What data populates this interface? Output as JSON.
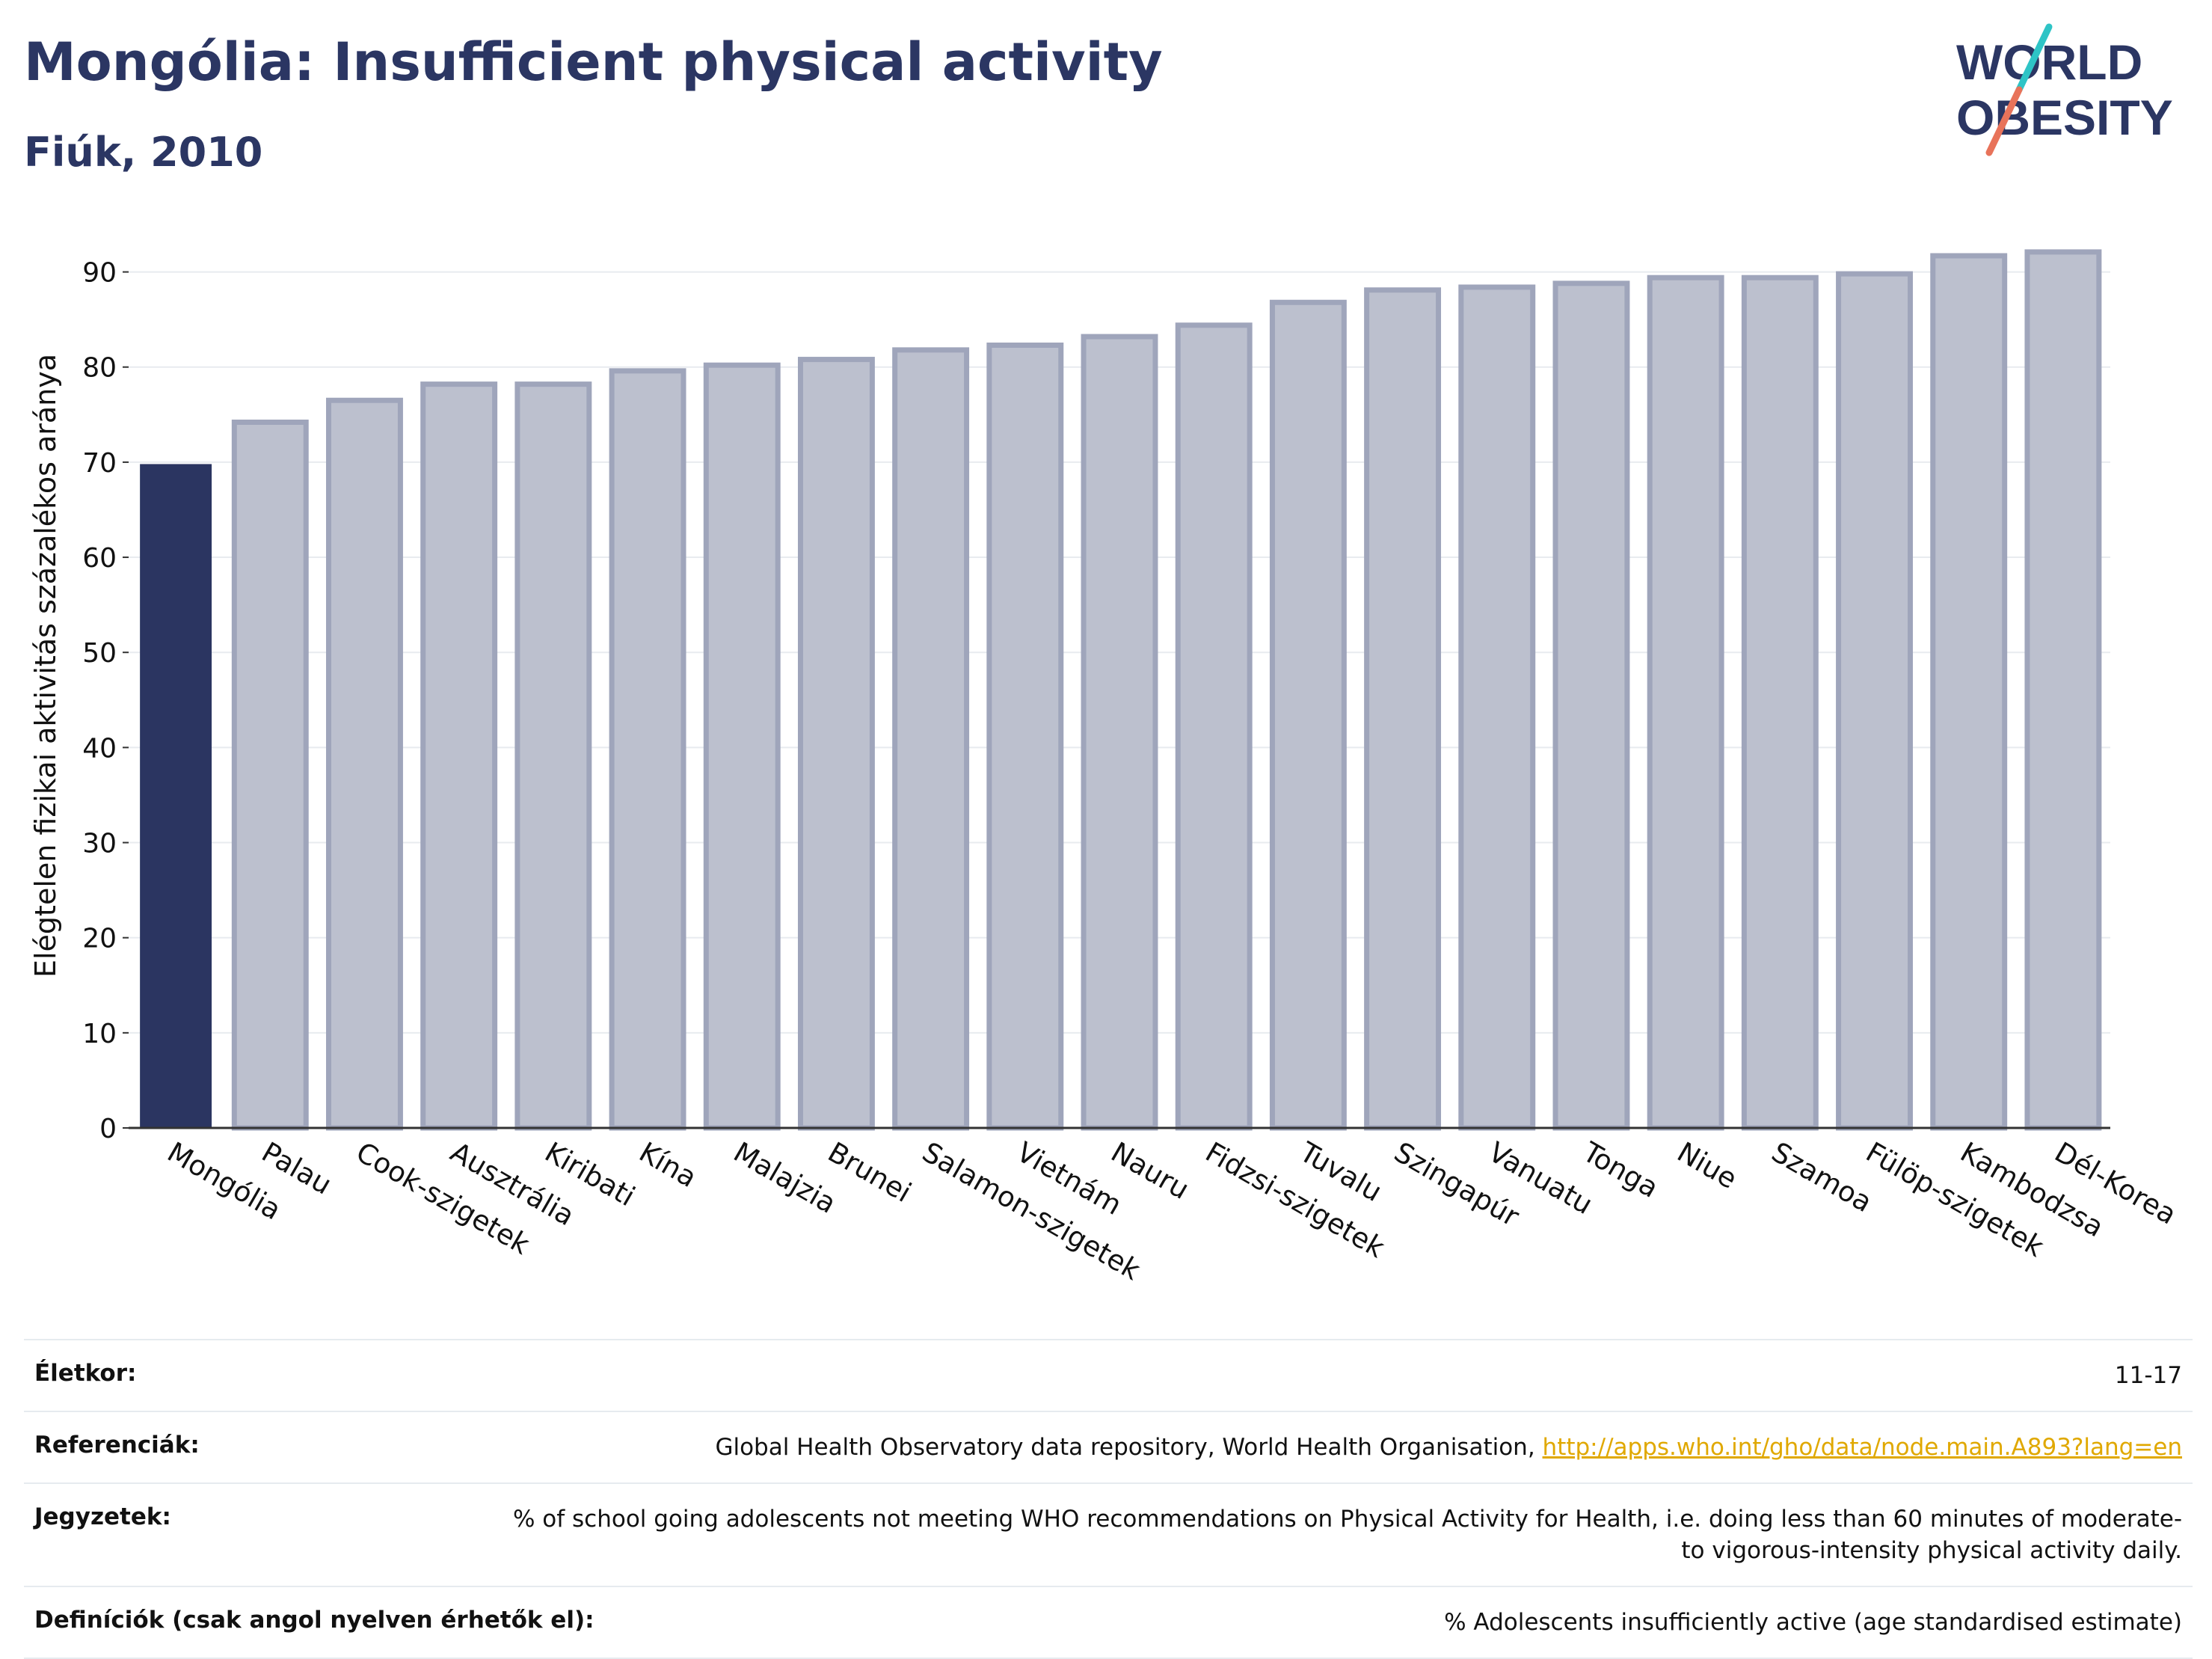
{
  "header": {
    "title": "Mongólia: Insufficient physical activity",
    "subtitle": "Fiúk, 2010"
  },
  "logo": {
    "line1": "WORLD",
    "line2": "OBESITY",
    "accent_colors": [
      "#2ec4c6",
      "#e8735a"
    ]
  },
  "chart_data": {
    "type": "bar",
    "ylabel": "Elégtelen fizikai aktivitás százalékos aránya",
    "ylim": [
      0,
      95
    ],
    "yticks": [
      0,
      10,
      20,
      30,
      40,
      50,
      60,
      70,
      80,
      90
    ],
    "grid": true,
    "highlight_color": "#2b3561",
    "bar_color": "#bcc0ce",
    "bar_edge_color": "#9fa5bb",
    "categories": [
      "Mongólia",
      "Palau",
      "Cook-szigetek",
      "Ausztrália",
      "Kiribati",
      "Kína",
      "Malajzia",
      "Brunei",
      "Salamon-szigetek",
      "Vietnám",
      "Nauru",
      "Fidzsi-szigetek",
      "Tuvalu",
      "Szingapúr",
      "Vanuatu",
      "Tonga",
      "Niue",
      "Szamoa",
      "Fülöp-szigetek",
      "Kambodzsa",
      "Dél-Korea"
    ],
    "values": [
      69.8,
      74.2,
      76.5,
      78.2,
      78.2,
      79.6,
      80.2,
      80.8,
      81.8,
      82.3,
      83.2,
      84.4,
      86.8,
      88.1,
      88.4,
      88.8,
      89.4,
      89.4,
      89.8,
      91.7,
      92.1
    ],
    "highlight_index": 0
  },
  "meta": {
    "rows": [
      {
        "label": "Életkor:",
        "value": "11-17"
      },
      {
        "label": "Referenciák:",
        "value": "Global Health Observatory data repository, World Health Organisation, ",
        "link": "http://apps.who.int/gho/data/node.main.A893?lang=en"
      },
      {
        "label": "Jegyzetek:",
        "value": "% of school going adolescents not meeting WHO recommendations on Physical Activity for Health, i.e. doing less than 60 minutes of moderate- to vigorous-intensity physical activity daily."
      },
      {
        "label": "Definíciók (csak angol nyelven érhetők el):",
        "value": "% Adolescents insufficiently active (age standardised estimate)"
      }
    ]
  }
}
